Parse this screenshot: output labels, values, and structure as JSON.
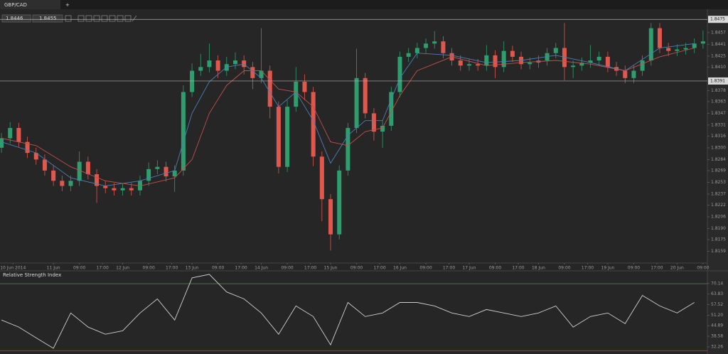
{
  "tab": {
    "title": "GBP/CAD",
    "add": "+"
  },
  "toolbar": {
    "bid": 1.8446,
    "ask": 1.8455
  },
  "chart_data": [
    {
      "type": "candlestick",
      "up_color": "#2f9e6e",
      "down_color": "#e0574e",
      "x": [
        6,
        9,
        12,
        15,
        18,
        21,
        24,
        27,
        30,
        33,
        36,
        39,
        42,
        45,
        48,
        51,
        54,
        57,
        60,
        63,
        66,
        69,
        72,
        75,
        78,
        81,
        84,
        87,
        90,
        93,
        96,
        99,
        102,
        105,
        108,
        111,
        114,
        117,
        120,
        123,
        126,
        129,
        132,
        135,
        138,
        141,
        144,
        147,
        150,
        153,
        156,
        159,
        162,
        165,
        168,
        171,
        174,
        177,
        180,
        183,
        186,
        189,
        192,
        195,
        198,
        201,
        204,
        207,
        210,
        213,
        216,
        219,
        222,
        225,
        228,
        231,
        234,
        237,
        240,
        243,
        246,
        249
      ],
      "open": [
        1.83,
        1.8313,
        1.8327,
        1.8308,
        1.8293,
        1.8284,
        1.8269,
        1.8255,
        1.8248,
        1.8255,
        1.8281,
        1.8264,
        1.8248,
        1.8245,
        1.8242,
        1.8245,
        1.8242,
        1.8255,
        1.8271,
        1.8274,
        1.8261,
        1.8269,
        1.8376,
        1.8405,
        1.841,
        1.8419,
        1.8405,
        1.8414,
        1.8419,
        1.841,
        1.8395,
        1.8405,
        1.8356,
        1.8274,
        1.8356,
        1.839,
        1.8376,
        1.8288,
        1.823,
        1.8182,
        1.8269,
        1.8327,
        1.8395,
        1.8347,
        1.8322,
        1.833,
        1.8376,
        1.8424,
        1.8429,
        1.8436,
        1.8442,
        1.8445,
        1.8429,
        1.8419,
        1.8412,
        1.8414,
        1.8412,
        1.8426,
        1.841,
        1.8432,
        1.8424,
        1.8414,
        1.8416,
        1.8419,
        1.8429,
        1.8436,
        1.841,
        1.8412,
        1.8416,
        1.8419,
        1.8424,
        1.841,
        1.8405,
        1.8395,
        1.8405,
        1.8419,
        1.8463,
        1.8436,
        1.8432,
        1.8434,
        1.8436,
        1.8442
      ],
      "high": [
        1.832,
        1.8335,
        1.8334,
        1.8315,
        1.83,
        1.8291,
        1.8276,
        1.8262,
        1.8262,
        1.8295,
        1.8288,
        1.8271,
        1.8255,
        1.8252,
        1.8252,
        1.8252,
        1.8262,
        1.828,
        1.8283,
        1.8281,
        1.8276,
        1.8385,
        1.8415,
        1.8428,
        1.8442,
        1.8426,
        1.8424,
        1.843,
        1.8426,
        1.8417,
        1.8463,
        1.8412,
        1.8363,
        1.8365,
        1.841,
        1.84,
        1.8383,
        1.8295,
        1.8237,
        1.8276,
        1.8334,
        1.8435,
        1.8402,
        1.8354,
        1.8337,
        1.8383,
        1.8431,
        1.8436,
        1.8443,
        1.8449,
        1.8459,
        1.8452,
        1.8436,
        1.8426,
        1.8421,
        1.8421,
        1.844,
        1.8433,
        1.8445,
        1.8439,
        1.8431,
        1.8423,
        1.8426,
        1.8436,
        1.8443,
        1.847,
        1.8419,
        1.8423,
        1.844,
        1.8431,
        1.8431,
        1.8417,
        1.8412,
        1.8412,
        1.8426,
        1.847,
        1.847,
        1.8443,
        1.8441,
        1.8443,
        1.8449,
        1.846
      ],
      "low": [
        1.8293,
        1.8306,
        1.8301,
        1.8286,
        1.8277,
        1.8262,
        1.8248,
        1.8241,
        1.8241,
        1.8248,
        1.8257,
        1.8225,
        1.8238,
        1.8235,
        1.8235,
        1.8235,
        1.8235,
        1.8248,
        1.8264,
        1.8254,
        1.824,
        1.8262,
        1.8369,
        1.8398,
        1.8403,
        1.8395,
        1.8398,
        1.8407,
        1.84,
        1.838,
        1.8388,
        1.834,
        1.8265,
        1.8267,
        1.8349,
        1.8365,
        1.8275,
        1.82,
        1.816,
        1.8175,
        1.8262,
        1.832,
        1.834,
        1.831,
        1.83,
        1.8323,
        1.8369,
        1.8417,
        1.8422,
        1.8429,
        1.8435,
        1.8422,
        1.8412,
        1.8405,
        1.8405,
        1.8405,
        1.8405,
        1.8395,
        1.8403,
        1.8417,
        1.8407,
        1.8407,
        1.8409,
        1.8412,
        1.8422,
        1.8392,
        1.8395,
        1.8405,
        1.8409,
        1.8412,
        1.8403,
        1.8398,
        1.8388,
        1.8388,
        1.8398,
        1.8412,
        1.8429,
        1.8425,
        1.8425,
        1.8427,
        1.8429,
        1.8435
      ],
      "close": [
        1.8313,
        1.8327,
        1.8308,
        1.8293,
        1.8284,
        1.8269,
        1.8255,
        1.8248,
        1.8255,
        1.8281,
        1.8264,
        1.8248,
        1.8245,
        1.8242,
        1.8245,
        1.8242,
        1.8255,
        1.8271,
        1.8274,
        1.8261,
        1.8269,
        1.8376,
        1.8405,
        1.841,
        1.8419,
        1.8405,
        1.8414,
        1.8419,
        1.841,
        1.8395,
        1.8405,
        1.8356,
        1.8274,
        1.8356,
        1.839,
        1.8376,
        1.8288,
        1.823,
        1.8182,
        1.8269,
        1.8327,
        1.8395,
        1.8347,
        1.8322,
        1.833,
        1.8376,
        1.8424,
        1.8429,
        1.8436,
        1.8442,
        1.8445,
        1.8429,
        1.8419,
        1.8412,
        1.8414,
        1.8412,
        1.8426,
        1.841,
        1.8432,
        1.8424,
        1.8414,
        1.8416,
        1.8419,
        1.8429,
        1.8436,
        1.841,
        1.8412,
        1.8416,
        1.8419,
        1.8424,
        1.841,
        1.8405,
        1.8395,
        1.8405,
        1.8419,
        1.8463,
        1.8436,
        1.8432,
        1.8434,
        1.8436,
        1.8442,
        1.8445
      ],
      "lines": [
        {
          "color": "#4a7fb8",
          "x": [
            6,
            18,
            30,
            42,
            54,
            66,
            72,
            78,
            84,
            90,
            96,
            102,
            108,
            114,
            120,
            126,
            132,
            138,
            144,
            150,
            162,
            174,
            186,
            198,
            210,
            222,
            234,
            246
          ],
          "values": [
            1.8308,
            1.8293,
            1.8259,
            1.8248,
            1.8255,
            1.8269,
            1.8347,
            1.839,
            1.841,
            1.8414,
            1.8395,
            1.8356,
            1.8376,
            1.8337,
            1.8279,
            1.8317,
            1.8337,
            1.8337,
            1.8395,
            1.8429,
            1.8426,
            1.8416,
            1.8419,
            1.8426,
            1.8416,
            1.8405,
            1.8436,
            1.8442
          ]
        },
        {
          "color": "#c0504d",
          "x": [
            6,
            18,
            30,
            42,
            54,
            66,
            72,
            78,
            84,
            90,
            96,
            102,
            108,
            114,
            120,
            126,
            132,
            138,
            144,
            150,
            162,
            174,
            186,
            198,
            210,
            222,
            234,
            246
          ],
          "values": [
            1.8313,
            1.8303,
            1.8274,
            1.8255,
            1.8248,
            1.8259,
            1.8284,
            1.8347,
            1.8385,
            1.8405,
            1.8405,
            1.838,
            1.8376,
            1.8356,
            1.8308,
            1.8303,
            1.8322,
            1.8327,
            1.8371,
            1.8405,
            1.8424,
            1.8412,
            1.8416,
            1.8419,
            1.8414,
            1.8405,
            1.8424,
            1.8436
          ]
        }
      ],
      "hlines": [
        {
          "value": 1.8475,
          "color": "#b0b0b0"
        },
        {
          "value": 1.8391,
          "color": "#b0b0b0"
        }
      ],
      "xlim": [
        5.5,
        250.5
      ],
      "xticks": [
        {
          "value": 10,
          "label": "10 Jun 2014"
        },
        {
          "value": 24,
          "label": "11 Jun"
        },
        {
          "value": 33,
          "label": "09:00"
        },
        {
          "value": 41,
          "label": "17:00"
        },
        {
          "value": 48,
          "label": "12 Jun"
        },
        {
          "value": 57,
          "label": "09:00"
        },
        {
          "value": 65,
          "label": "17:00"
        },
        {
          "value": 72,
          "label": "13 Jun"
        },
        {
          "value": 81,
          "label": "09:00"
        },
        {
          "value": 89,
          "label": "17:00"
        },
        {
          "value": 96,
          "label": "14 Jun"
        },
        {
          "value": 105,
          "label": "09:00"
        },
        {
          "value": 113,
          "label": "17:00"
        },
        {
          "value": 120,
          "label": "15 Jun"
        },
        {
          "value": 129,
          "label": "09:00"
        },
        {
          "value": 137,
          "label": "17:00"
        },
        {
          "value": 144,
          "label": "16 Jun"
        },
        {
          "value": 153,
          "label": "09:00"
        },
        {
          "value": 161,
          "label": "17:00"
        },
        {
          "value": 168,
          "label": "17 Jun"
        },
        {
          "value": 177,
          "label": "09:00"
        },
        {
          "value": 185,
          "label": "17:00"
        },
        {
          "value": 192,
          "label": "18 Jun"
        },
        {
          "value": 201,
          "label": "09:00"
        },
        {
          "value": 209,
          "label": "17:00"
        },
        {
          "value": 216,
          "label": "19 Jun"
        },
        {
          "value": 225,
          "label": "09:00"
        },
        {
          "value": 233,
          "label": "17:00"
        },
        {
          "value": 240,
          "label": "20 Jun"
        },
        {
          "value": 249,
          "label": "09:00"
        }
      ],
      "ylim": [
        1.8143,
        1.8482
      ],
      "yticks": [
        1.8457,
        1.8441,
        1.8425,
        {
          "value": 1.841,
          "label": "1.8410"
        },
        1.8378,
        1.8363,
        1.8347,
        1.8331,
        1.8316,
        {
          "value": 1.83,
          "label": "1.8300"
        },
        1.8284,
        1.8269,
        1.8253,
        1.8237,
        1.8222,
        1.8206,
        {
          "value": 1.819,
          "label": "1.8190"
        },
        1.8175,
        1.8159
      ]
    },
    {
      "type": "line",
      "title": "Relative Strength Index",
      "color": "#d0d0d0",
      "x": [
        6,
        12,
        18,
        24,
        30,
        36,
        42,
        48,
        54,
        60,
        66,
        72,
        78,
        84,
        90,
        96,
        102,
        108,
        114,
        120,
        126,
        132,
        138,
        144,
        150,
        156,
        162,
        168,
        174,
        180,
        186,
        192,
        198,
        204,
        210,
        216,
        222,
        228,
        234,
        240,
        246
      ],
      "values": [
        48.3,
        44.1,
        37.7,
        31.4,
        52.5,
        44.1,
        39.8,
        41.9,
        52.5,
        60.9,
        48.3,
        73.5,
        75.6,
        65.1,
        60.9,
        52.5,
        39.8,
        56.7,
        50.4,
        33.5,
        58.8,
        50.4,
        52.5,
        58.8,
        58.8,
        56.7,
        52.5,
        50.4,
        54.6,
        52.5,
        50.4,
        52.5,
        56.7,
        44.1,
        50.4,
        52.5,
        46.2,
        63.0,
        56.7,
        52.5,
        58.8
      ],
      "levels": [
        {
          "value": 70,
          "color": "#3f7a3f"
        },
        {
          "value": 30,
          "color": "#b03a32"
        }
      ],
      "xlim": [
        5.5,
        250.5
      ],
      "ylim": [
        28,
        77.7
      ],
      "yticks": [
        70.14,
        63.83,
        57.52,
        {
          "value": 51.2,
          "label": "51.20"
        },
        44.89,
        38.58,
        32.26
      ]
    }
  ]
}
